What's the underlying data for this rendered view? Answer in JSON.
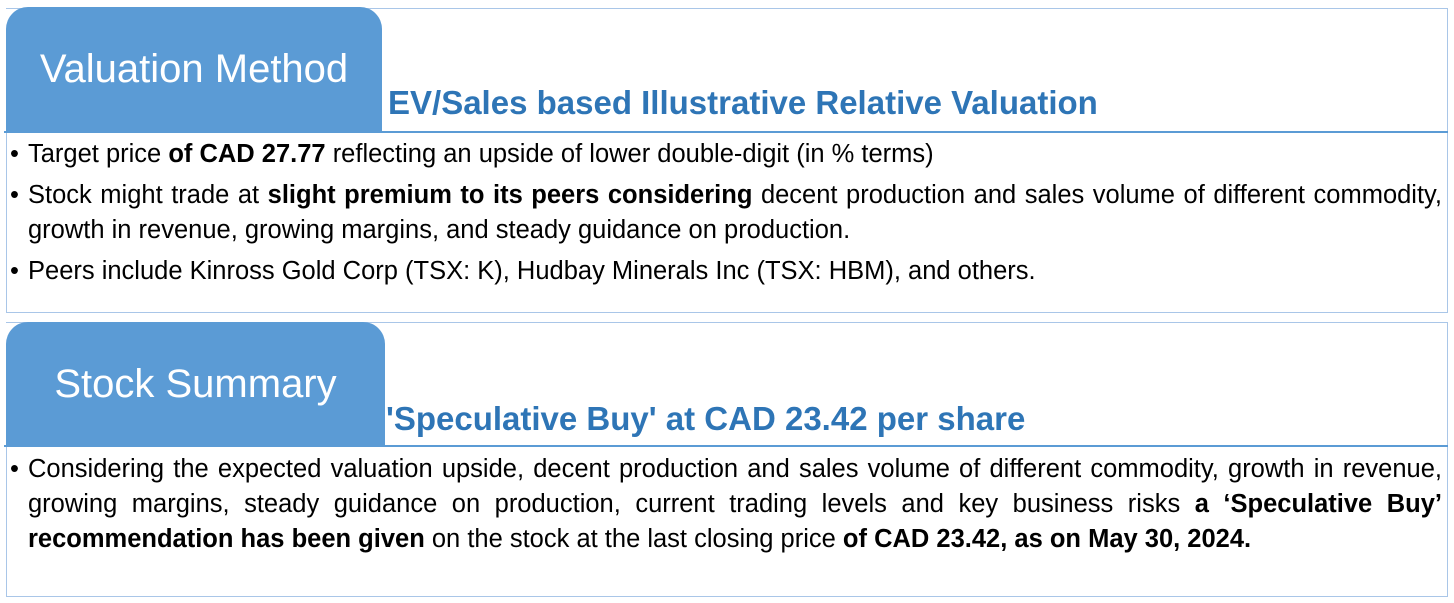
{
  "valuation": {
    "tab_label": "Valuation Method",
    "heading": "EV/Sales based Illustrative Relative Valuation",
    "bullets": [
      {
        "parts": [
          {
            "text": "Target price ",
            "bold": false
          },
          {
            "text": "of CAD 27.77",
            "bold": true
          },
          {
            "text": " reflecting an upside of lower double-digit (in % terms)",
            "bold": false
          }
        ]
      },
      {
        "parts": [
          {
            "text": "Stock might trade at ",
            "bold": false
          },
          {
            "text": "slight premium to its peers considering",
            "bold": true
          },
          {
            "text": " decent production and sales volume of different commodity, growth in revenue, growing margins, and steady guidance on production.",
            "bold": false
          }
        ]
      },
      {
        "parts": [
          {
            "text": "Peers include Kinross Gold Corp (TSX: K), Hudbay Minerals Inc (TSX: HBM), and others.",
            "bold": false
          }
        ]
      }
    ]
  },
  "summary": {
    "tab_label": "Stock Summary",
    "heading": "'Speculative Buy' at CAD 23.42 per share",
    "bullets": [
      {
        "parts": [
          {
            "text": "Considering the expected valuation upside, decent production and sales volume of different commodity, growth in revenue, growing margins, steady guidance on production, current trading levels and key business risks ",
            "bold": false
          },
          {
            "text": "a ‘Speculative Buy’ recommendation has been given",
            "bold": true
          },
          {
            "text": " on the stock at the last closing price ",
            "bold": false
          },
          {
            "text": "of CAD 23.42, as on May 30, 2024.",
            "bold": true
          }
        ]
      }
    ]
  },
  "bullet_char": "•",
  "colors": {
    "tab_bg": "#5b9bd5",
    "heading": "#2e75b6",
    "border": "#a9c6e8"
  }
}
